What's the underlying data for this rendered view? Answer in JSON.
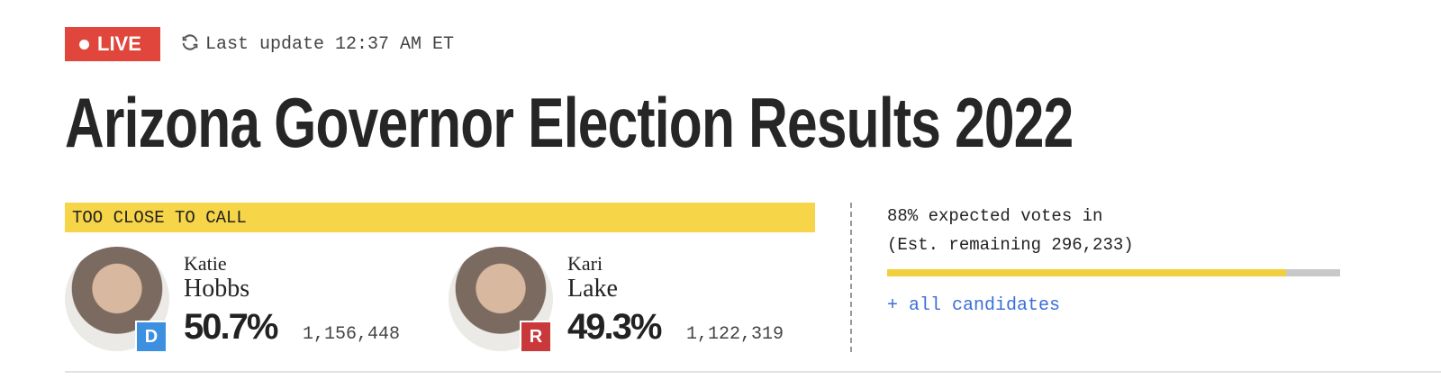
{
  "header": {
    "live_badge": "LIVE",
    "update_text": "Last update 12:37 AM ET"
  },
  "title": "Arizona Governor Election Results 2022",
  "race_status": "TOO CLOSE TO CALL",
  "candidates": [
    {
      "first_name": "Katie",
      "last_name": "Hobbs",
      "party": "D",
      "percent": "50.7%",
      "votes": "1,156,448"
    },
    {
      "first_name": "Kari",
      "last_name": "Lake",
      "party": "R",
      "percent": "49.3%",
      "votes": "1,122,319"
    }
  ],
  "reporting": {
    "expected_text": "88% expected votes in",
    "remaining_text": "(Est. remaining 296,233)",
    "expected_percent": 88
  },
  "all_candidates_link": "+ all candidates"
}
